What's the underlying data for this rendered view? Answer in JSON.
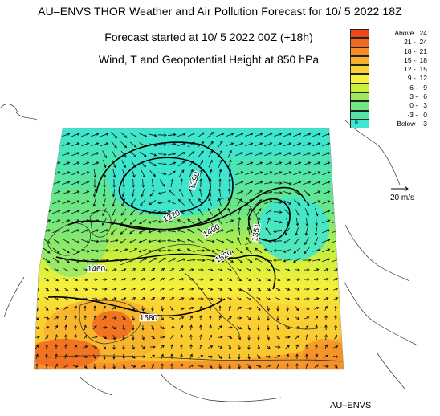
{
  "header": {
    "title": "AU–ENVS THOR Weather and Air Pollution Forecast for 10/ 5 2022  18Z",
    "subtitle_start": "Forecast started at 10/ 5 2022  00Z (+18h)",
    "subtitle_field": "Wind, T and Geopotential Height at 850 hPa"
  },
  "legend": {
    "items": [
      {
        "label": "Above   24",
        "color": "#f0461e"
      },
      {
        "label": "21 -  24",
        "color": "#f06a1e"
      },
      {
        "label": "18 -  21",
        "color": "#f58c28"
      },
      {
        "label": "15 -  18",
        "color": "#f8af2c"
      },
      {
        "label": "12 -  15",
        "color": "#fad232"
      },
      {
        "label": "9 -  12",
        "color": "#f5f03c"
      },
      {
        "label": "6 -   9",
        "color": "#c8f03c"
      },
      {
        "label": "3 -   6",
        "color": "#9ee85a"
      },
      {
        "label": "0 -   3",
        "color": "#6ee682"
      },
      {
        "label": "-3 -   0",
        "color": "#50e6aa"
      },
      {
        "label": "Below   -3",
        "color": "#3ce6d2"
      }
    ],
    "below_marker": "B"
  },
  "contour_labels": [
    {
      "text": "1290"
    },
    {
      "text": "1320"
    },
    {
      "text": "1400"
    },
    {
      "text": "1520"
    },
    {
      "text": "1351"
    },
    {
      "text": "1460"
    },
    {
      "text": "1580"
    }
  ],
  "wind_reference": {
    "label": "20 m/s"
  },
  "footer": {
    "brand": "AU–ENVS"
  }
}
